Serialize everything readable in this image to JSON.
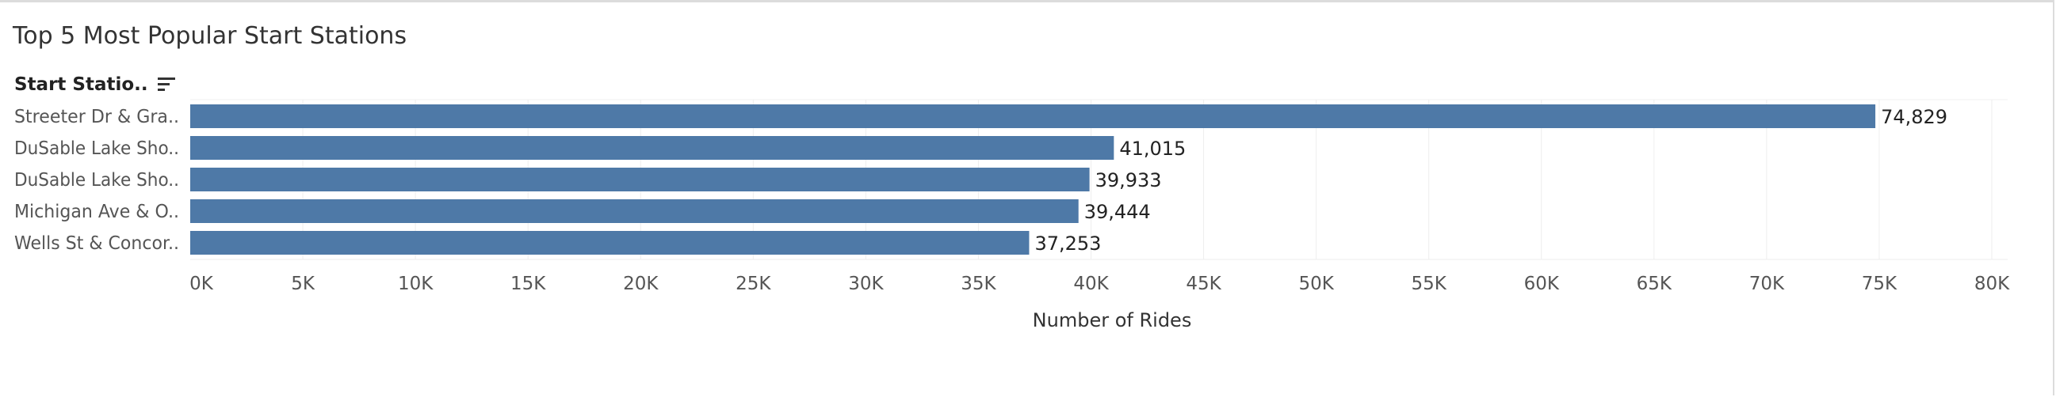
{
  "chart_data": {
    "type": "bar",
    "orientation": "horizontal",
    "title": "Top 5 Most Popular Start Stations",
    "row_header": "Start Statio..",
    "categories": [
      "Streeter Dr & Gra..",
      "DuSable Lake Sho..",
      "DuSable Lake Sho..",
      "Michigan Ave & O..",
      "Wells St & Concor.."
    ],
    "values": [
      74829,
      41015,
      39933,
      39444,
      37253
    ],
    "value_labels": [
      "74,829",
      "41,015",
      "39,933",
      "39,444",
      "37,253"
    ],
    "xlabel": "Number of Rides",
    "xlim": [
      0,
      80000
    ],
    "x_ticks": [
      0,
      5000,
      10000,
      15000,
      20000,
      25000,
      30000,
      35000,
      40000,
      45000,
      50000,
      55000,
      60000,
      65000,
      70000,
      75000,
      80000
    ],
    "x_tick_labels": [
      "0K",
      "5K",
      "10K",
      "15K",
      "20K",
      "25K",
      "30K",
      "35K",
      "40K",
      "45K",
      "50K",
      "55K",
      "60K",
      "65K",
      "70K",
      "75K",
      "80K"
    ],
    "grid": true,
    "legend": "none",
    "bar_color": "#4e79a7"
  },
  "icons": {
    "sort": "sort-descending-icon"
  }
}
